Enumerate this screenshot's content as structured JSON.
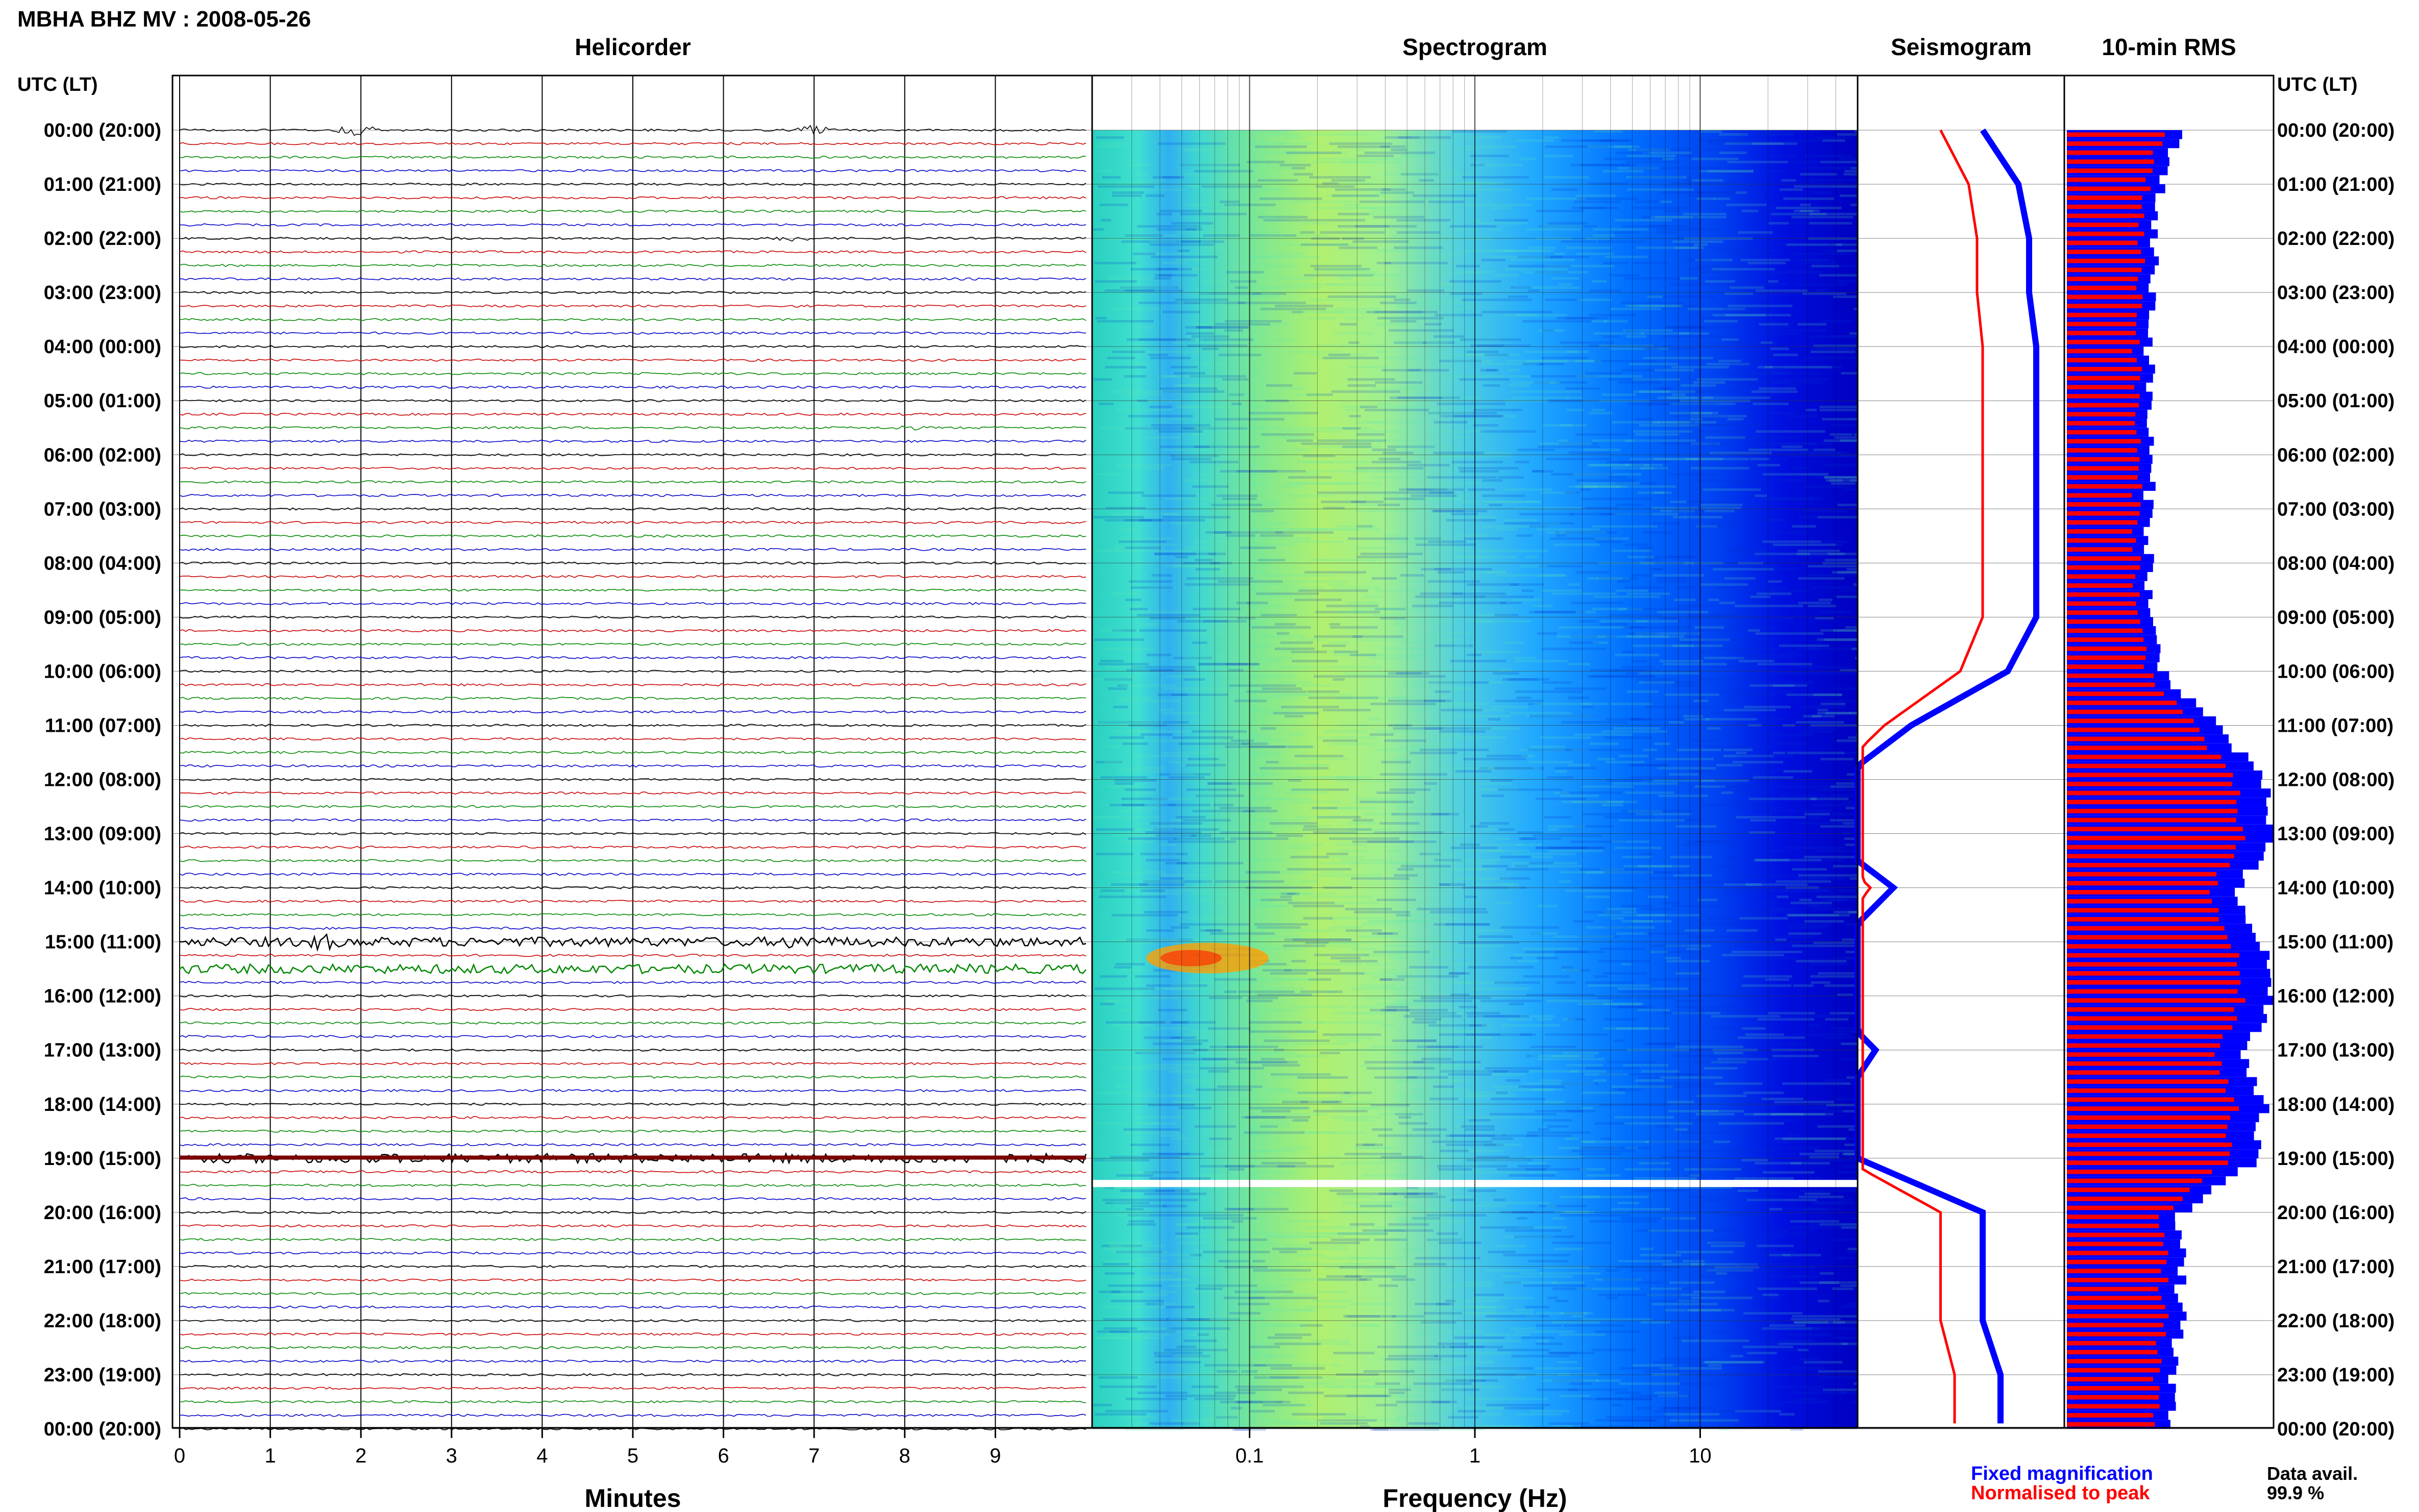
{
  "header": {
    "station_title": "MBHA BHZ MV : 2008-05-26",
    "utc_header": "UTC (LT)"
  },
  "panels": {
    "helicorder_title": "Helicorder",
    "spectrogram_title": "Spectrogram",
    "seismogram_title": "Seismogram",
    "rms_title": "10-min RMS"
  },
  "colors": {
    "trace_cycle": [
      "#000000",
      "#cc0000",
      "#008800",
      "#0000cc"
    ],
    "fixed": "#0000ff",
    "normalised": "#ff0000"
  },
  "chart_data": [
    {
      "type": "line",
      "name": "helicorder",
      "title": "Helicorder",
      "xlabel": "Minutes",
      "x_ticks": [
        "0",
        "1",
        "2",
        "3",
        "4",
        "5",
        "6",
        "7",
        "8",
        "9"
      ],
      "xlim": [
        0,
        10
      ],
      "y_tick_labels": [
        "00:00 (20:00)",
        "01:00 (21:00)",
        "02:00 (22:00)",
        "03:00 (23:00)",
        "04:00 (00:00)",
        "05:00 (01:00)",
        "06:00 (02:00)",
        "07:00 (03:00)",
        "08:00 (04:00)",
        "09:00 (05:00)",
        "10:00 (06:00)",
        "11:00 (07:00)",
        "12:00 (08:00)",
        "13:00 (09:00)",
        "14:00 (10:00)",
        "15:00 (11:00)",
        "16:00 (12:00)",
        "17:00 (13:00)",
        "18:00 (14:00)",
        "19:00 (15:00)",
        "20:00 (16:00)",
        "21:00 (17:00)",
        "22:00 (18:00)",
        "23:00 (19:00)",
        "00:00 (20:00)"
      ],
      "events": [
        {
          "hour": 0.0,
          "minute": 1.95,
          "amp": 14
        },
        {
          "hour": 0.0,
          "minute": 7.0,
          "amp": 8
        },
        {
          "hour": 2.0,
          "minute": 6.75,
          "amp": 5
        },
        {
          "hour": 5.5,
          "minute": 8.0,
          "amp": 4
        },
        {
          "hour": 15.0,
          "minute": 1.55,
          "amp": 10
        },
        {
          "hour": 15.0,
          "minute": 6.8,
          "amp": 7
        }
      ],
      "noisy_hours": [
        15.0,
        15.5,
        19.0
      ]
    },
    {
      "type": "heatmap",
      "name": "spectrogram",
      "title": "Spectrogram",
      "xlabel": "Frequency (Hz)",
      "x_scale": "log",
      "x_ticks": [
        "0.1",
        "1",
        "10"
      ],
      "xlim": [
        0.02,
        50
      ]
    },
    {
      "type": "line",
      "name": "seismogram",
      "title": "Seismogram",
      "series": [
        {
          "name": "Fixed magnification",
          "color": "#0000ff"
        },
        {
          "name": "Normalised to peak",
          "color": "#ff0000"
        }
      ]
    },
    {
      "type": "bar",
      "name": "rms",
      "title": "10-min RMS",
      "series": [
        {
          "name": "Fixed magnification",
          "color": "#0000ff"
        },
        {
          "name": "Normalised to peak",
          "color": "#ff0000"
        }
      ],
      "hourly_level": [
        0.55,
        0.45,
        0.42,
        0.42,
        0.4,
        0.4,
        0.4,
        0.4,
        0.4,
        0.4,
        0.48,
        0.75,
        0.95,
        1.0,
        0.8,
        0.95,
        1.0,
        0.85,
        0.95,
        0.9,
        0.55,
        0.55,
        0.55,
        0.5
      ]
    }
  ],
  "legend": {
    "fixed": "Fixed magnification",
    "normalised": "Normalised to peak"
  },
  "data_avail": {
    "label": "Data avail.",
    "value": "99.9 %"
  }
}
